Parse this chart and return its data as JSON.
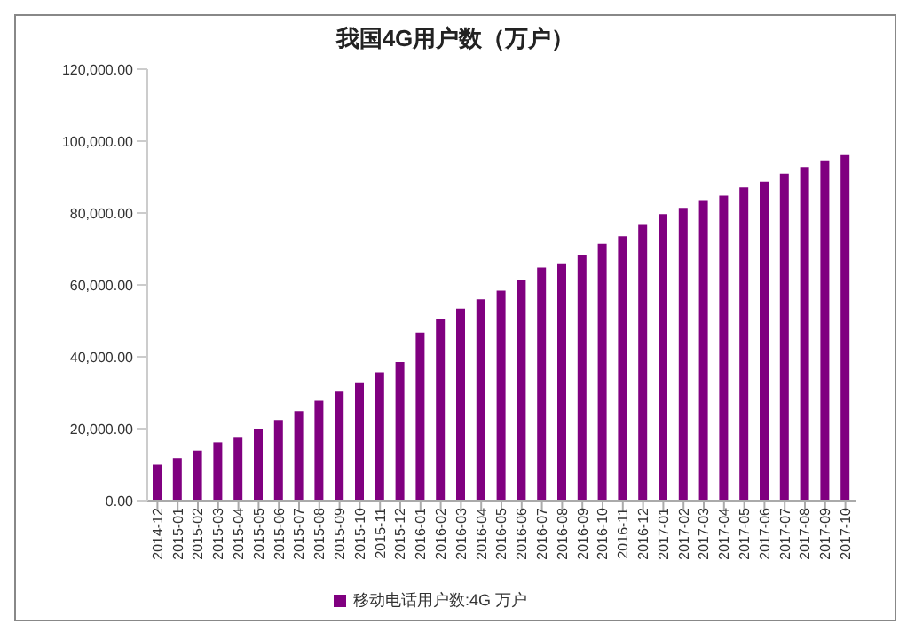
{
  "chart_data": {
    "type": "bar",
    "title": "我国4G用户数（万户）",
    "categories": [
      "2014-12",
      "2015-01",
      "2015-02",
      "2015-03",
      "2015-04",
      "2015-05",
      "2015-06",
      "2015-07",
      "2015-08",
      "2015-09",
      "2015-10",
      "2015-11",
      "2015-12",
      "2016-01",
      "2016-02",
      "2016-03",
      "2016-04",
      "2016-05",
      "2016-06",
      "2016-07",
      "2016-08",
      "2016-09",
      "2016-10",
      "2016-11",
      "2016-12",
      "2017-01",
      "2017-02",
      "2017-03",
      "2017-04",
      "2017-05",
      "2017-06",
      "2017-07",
      "2017-08",
      "2017-09",
      "2017-10"
    ],
    "series": [
      {
        "name": "移动电话用户数:4G  万户",
        "color": "#800080",
        "values": [
          10000,
          11800,
          13900,
          16200,
          17700,
          20000,
          22400,
          24900,
          27800,
          30300,
          32900,
          35700,
          38500,
          46700,
          50600,
          53400,
          56000,
          58400,
          61400,
          64800,
          66000,
          68400,
          71400,
          73500,
          76900,
          79700,
          81400,
          83600,
          84800,
          87100,
          88700,
          90900,
          92800,
          94600,
          96100
        ]
      }
    ],
    "ylim": [
      0,
      120000
    ],
    "yticks": [
      {
        "value": 0,
        "label": "0.00"
      },
      {
        "value": 20000,
        "label": "20,000.00"
      },
      {
        "value": 40000,
        "label": "40,000.00"
      },
      {
        "value": 60000,
        "label": "60,000.00"
      },
      {
        "value": 80000,
        "label": "80,000.00"
      },
      {
        "value": 100000,
        "label": "100,000.00"
      },
      {
        "value": 120000,
        "label": "120,000.00"
      }
    ],
    "legend": "bottom"
  }
}
